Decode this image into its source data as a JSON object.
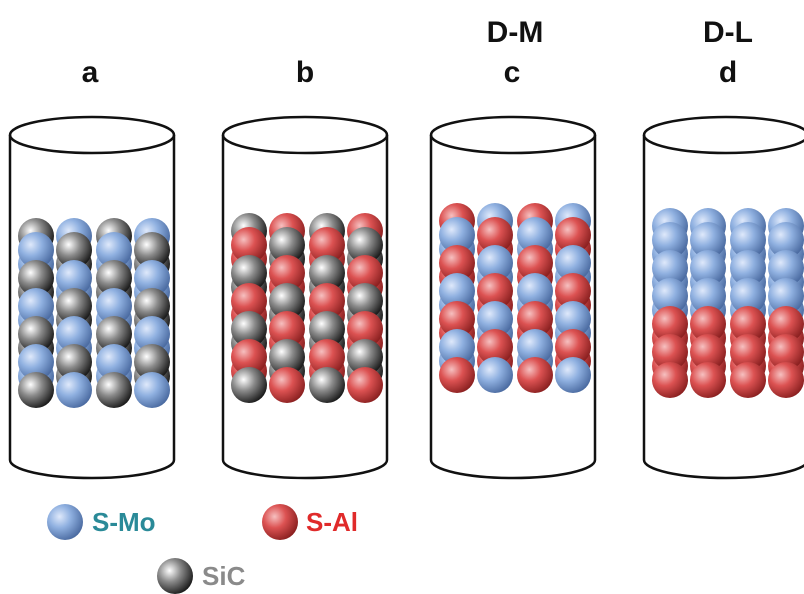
{
  "panels": [
    {
      "label": "a"
    },
    {
      "label": "b"
    },
    {
      "label": "c",
      "group": "D-M"
    },
    {
      "label": "d",
      "group": "D-L"
    }
  ],
  "legend": [
    {
      "label": "S-Mo"
    },
    {
      "label": "S-Al"
    },
    {
      "label": "SiC"
    }
  ]
}
